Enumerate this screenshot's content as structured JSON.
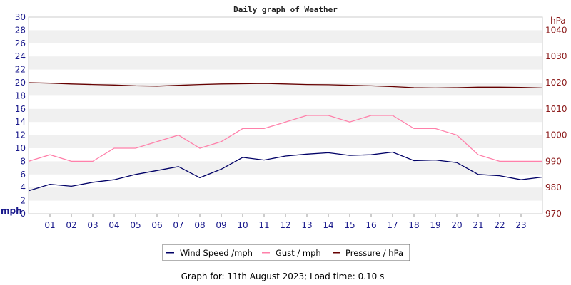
{
  "chart_data": {
    "type": "line",
    "title": "Daily graph of Weather",
    "x_ticks": [
      "01",
      "02",
      "03",
      "04",
      "05",
      "06",
      "07",
      "08",
      "09",
      "10",
      "11",
      "12",
      "13",
      "14",
      "15",
      "16",
      "17",
      "18",
      "19",
      "20",
      "21",
      "22",
      "23"
    ],
    "x_range": [
      0,
      24
    ],
    "y_left": {
      "unit": "mph",
      "range": [
        0,
        30
      ],
      "ticks": [
        0,
        2,
        4,
        6,
        8,
        10,
        12,
        14,
        16,
        18,
        20,
        22,
        24,
        26,
        28,
        30
      ]
    },
    "y_right": {
      "unit": "hPa",
      "range": [
        970,
        1045
      ],
      "ticks": [
        970,
        980,
        990,
        1000,
        1010,
        1020,
        1030,
        1040
      ]
    },
    "grid": "horizontal bands",
    "legend_position": "bottom",
    "series": [
      {
        "name": "Wind Speed /mph",
        "axis": "left",
        "color": "#000066",
        "x": [
          0,
          1,
          2,
          3,
          4,
          5,
          6,
          7,
          8,
          9,
          10,
          11,
          12,
          13,
          14,
          15,
          16,
          17,
          18,
          19,
          20,
          21,
          22,
          23,
          24
        ],
        "y": [
          3.5,
          4.5,
          4.2,
          4.8,
          5.2,
          6.0,
          6.6,
          7.2,
          5.5,
          6.8,
          8.6,
          8.2,
          8.8,
          9.1,
          9.3,
          8.9,
          9.0,
          9.4,
          8.1,
          8.2,
          7.8,
          6.0,
          5.8,
          5.2,
          5.6
        ]
      },
      {
        "name": "Gust / mph",
        "axis": "left",
        "color": "#ff80aa",
        "x": [
          0,
          1,
          2,
          3,
          4,
          5,
          6,
          7,
          8,
          9,
          10,
          11,
          12,
          13,
          14,
          15,
          16,
          17,
          18,
          19,
          20,
          21,
          22,
          23,
          24
        ],
        "y": [
          8,
          9,
          8,
          8,
          10,
          10,
          11,
          12,
          10,
          11,
          13,
          13,
          14,
          15,
          15,
          14,
          15,
          15,
          13,
          13,
          12,
          9,
          8,
          8,
          8
        ]
      },
      {
        "name": "Pressure / hPa",
        "axis": "right",
        "color": "#660000",
        "x": [
          0,
          1,
          2,
          3,
          4,
          5,
          6,
          7,
          8,
          9,
          10,
          11,
          12,
          13,
          14,
          15,
          16,
          17,
          18,
          19,
          20,
          21,
          22,
          23,
          24
        ],
        "y": [
          1020,
          1019.8,
          1019.5,
          1019.3,
          1019.1,
          1018.8,
          1018.7,
          1019.0,
          1019.3,
          1019.5,
          1019.6,
          1019.7,
          1019.5,
          1019.3,
          1019.2,
          1019.0,
          1018.8,
          1018.5,
          1018.1,
          1018.0,
          1018.1,
          1018.3,
          1018.3,
          1018.2,
          1018.0
        ]
      }
    ]
  },
  "footer": "Graph for: 11th August 2023; Load time: 0.10 s"
}
